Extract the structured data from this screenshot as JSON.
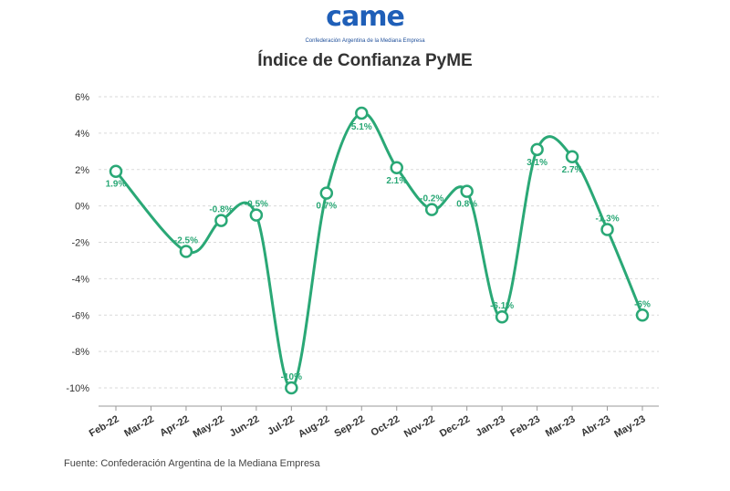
{
  "header": {
    "logo_text": "came",
    "logo_subtitle": "Confederación Argentina de la Mediana Empresa"
  },
  "footer": {
    "source": "Fuente: Confederación Argentina de la Mediana Empresa"
  },
  "colors": {
    "series": "#2aa876",
    "grid": "#d9d9d9",
    "axis": "#999999",
    "logo": "#1f5fb8"
  },
  "chart_data": {
    "type": "line",
    "title": "Índice de Confianza PyME",
    "xlabel": "",
    "ylabel": "",
    "categories": [
      "Feb-22",
      "Mar-22",
      "Apr-22",
      "May-22",
      "Jun-22",
      "Jul-22",
      "Aug-22",
      "Sep-22",
      "Oct-22",
      "Nov-22",
      "Dec-22",
      "Jan-23",
      "Feb-23",
      "Mar-23",
      "Abr-23",
      "May-23"
    ],
    "series": [
      {
        "values": [
          1.9,
          null,
          -2.5,
          -0.8,
          -0.5,
          -10,
          0.7,
          5.1,
          2.1,
          -0.2,
          0.8,
          -6.1,
          3.1,
          2.7,
          -1.3,
          -6
        ],
        "labels": [
          "1.9%",
          "",
          "-2.5%",
          "-0.8%",
          "-0.5%",
          "-10%",
          "0.7%",
          "5.1%",
          "2.1%",
          "-0.2%",
          "0.8%",
          "-6.1%",
          "3.1%",
          "2.7%",
          "-1.3%",
          "-6%"
        ]
      }
    ],
    "yticks": [
      "6%",
      "4%",
      "2%",
      "0%",
      "-2%",
      "-4%",
      "-6%",
      "-8%",
      "-10%"
    ],
    "ytick_values": [
      6,
      4,
      2,
      0,
      -2,
      -4,
      -6,
      -8,
      -10
    ],
    "ylim": [
      -11,
      6.5
    ],
    "grid": true,
    "legend": "none"
  }
}
